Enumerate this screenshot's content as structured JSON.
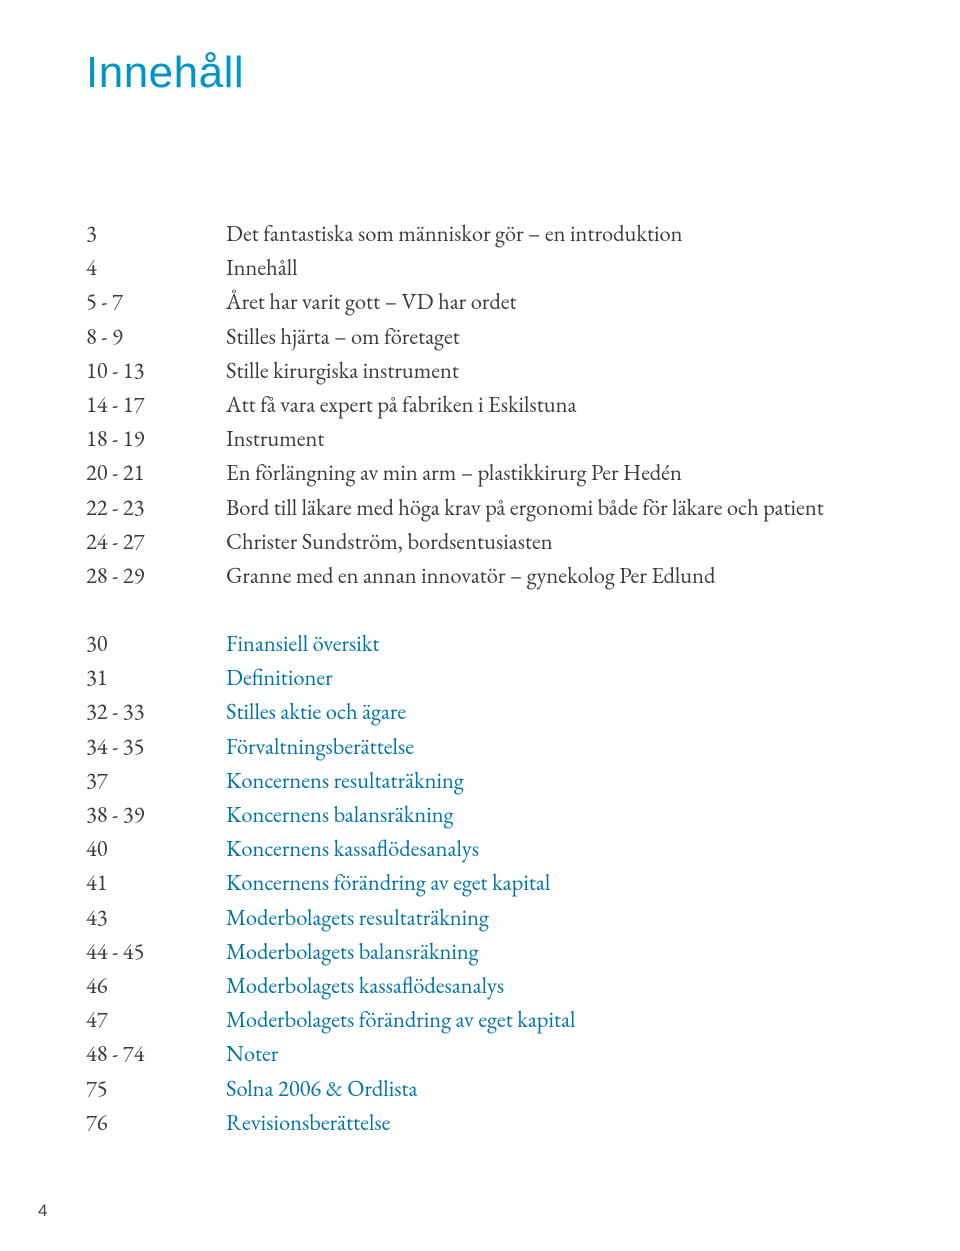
{
  "colors": {
    "title": "#0095c8",
    "body_text": "#3b3b3b",
    "link_text": "#0074a8",
    "background": "#ffffff"
  },
  "title": "Innehåll",
  "page_number": "4",
  "toc_section1": [
    {
      "page": "3",
      "title": "Det fantastiska som människor gör – en introduktion"
    },
    {
      "page": "4",
      "title": "Innehåll"
    },
    {
      "page": "5 - 7",
      "title": "Året har varit gott – VD har ordet"
    },
    {
      "page": "8 - 9",
      "title": "Stilles hjärta – om företaget"
    },
    {
      "page": "10 - 13",
      "title": "Stille kirurgiska instrument"
    },
    {
      "page": "14 - 17",
      "title": "Att få vara expert på fabriken i Eskilstuna"
    },
    {
      "page": "18 - 19",
      "title": "Instrument"
    },
    {
      "page": "20 - 21",
      "title": "En förlängning av min arm – plastikkirurg Per Hedén"
    },
    {
      "page": "22 - 23",
      "title": "Bord till läkare med höga krav på ergonomi både för läkare och patient"
    },
    {
      "page": "24 - 27",
      "title": "Christer Sundström, bordsentusiasten"
    },
    {
      "page": "28 - 29",
      "title": "Granne med en annan innovatör – gynekolog Per Edlund"
    }
  ],
  "toc_section2": [
    {
      "page": "30",
      "title": "Finansiell översikt"
    },
    {
      "page": "31",
      "title": "Definitioner"
    },
    {
      "page": "32 - 33",
      "title": "Stilles aktie och ägare"
    },
    {
      "page": "34 - 35",
      "title": "Förvaltningsberättelse"
    },
    {
      "page": "37",
      "title": "Koncernens resultaträkning"
    },
    {
      "page": "38 - 39",
      "title": "Koncernens balansräkning"
    },
    {
      "page": "40",
      "title": "Koncernens kassaflödesanalys"
    },
    {
      "page": "41",
      "title": "Koncernens förändring av eget kapital"
    },
    {
      "page": "43",
      "title": "Moderbolagets resultaträkning"
    },
    {
      "page": "44 - 45",
      "title": "Moderbolagets balansräkning"
    },
    {
      "page": "46",
      "title": "Moderbolagets kassaflödesanalys"
    },
    {
      "page": "47",
      "title": "Moderbolagets förändring av eget kapital"
    },
    {
      "page": "48 - 74",
      "title": "Noter"
    },
    {
      "page": "75",
      "title": "Solna 2006 & Ordlista"
    },
    {
      "page": "76",
      "title": "Revisionsberättelse"
    }
  ]
}
